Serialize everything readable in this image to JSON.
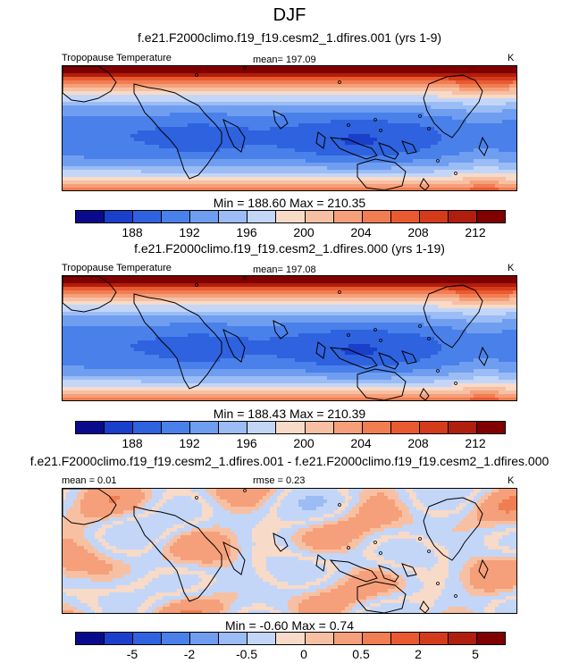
{
  "chart_data": [
    {
      "type": "heatmap",
      "title": "DJF",
      "subtitle": "f.e21.F2000climo.f19_f19.cesm2_1.dfires.001 (yrs 1-9)",
      "left_label": "Tropopause Temperature",
      "center_label": "mean= 197.09",
      "units": "K",
      "stats": "Min = 188.60 Max = 210.35",
      "mean": 197.09,
      "min": 188.6,
      "max": 210.35,
      "colorbar_ticks": [
        "188",
        "192",
        "196",
        "200",
        "204",
        "208",
        "212"
      ],
      "colorbar_colors": [
        "#0a0a8c",
        "#1a3fcb",
        "#2e62de",
        "#4a80ea",
        "#6f9ef0",
        "#9bbcf4",
        "#c3d6f8",
        "#f7dac8",
        "#f7c0a3",
        "#f5a07a",
        "#f17d53",
        "#e95a30",
        "#d43b1b",
        "#b01e0e",
        "#800000"
      ]
    },
    {
      "type": "heatmap",
      "subtitle": "f.e21.F2000climo.f19_f19.cesm2_1.dfires.000 (yrs 1-19)",
      "left_label": "Tropopause Temperature",
      "center_label": "mean= 197.08",
      "units": "K",
      "stats": "Min = 188.43 Max = 210.39",
      "mean": 197.08,
      "min": 188.43,
      "max": 210.39,
      "colorbar_ticks": [
        "188",
        "192",
        "196",
        "200",
        "204",
        "208",
        "212"
      ]
    },
    {
      "type": "heatmap",
      "subtitle": "f.e21.F2000climo.f19_f19.cesm2_1.dfires.001 - f.e21.F2000climo.f19_f19.cesm2_1.dfires.000",
      "left_label": "mean =   0.01",
      "center_label": "rmse =   0.23",
      "units": "K",
      "stats": "Min =  -0.60 Max =   0.74",
      "mean": 0.01,
      "rmse": 0.23,
      "min": -0.6,
      "max": 0.74,
      "colorbar_ticks": [
        "-5",
        "-2",
        "-0.5",
        "0",
        "0.5",
        "2",
        "5"
      ]
    }
  ]
}
